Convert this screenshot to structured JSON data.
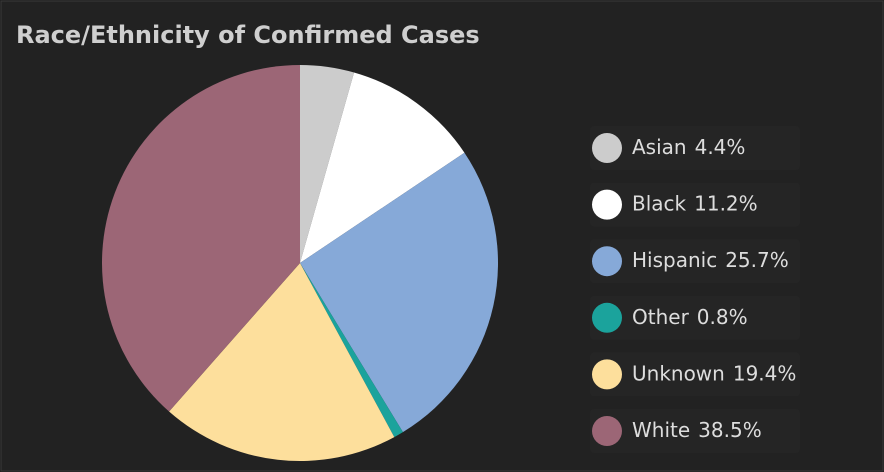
{
  "chart_data": {
    "type": "pie",
    "title": "Race/Ethnicity of Confirmed Cases",
    "categories": [
      "Asian",
      "Black",
      "Hispanic",
      "Other",
      "Unknown",
      "White"
    ],
    "values": [
      4.4,
      11.2,
      25.7,
      0.8,
      19.4,
      38.5
    ],
    "value_labels": [
      "4.4%",
      "11.2%",
      "25.7%",
      "0.8%",
      "19.4%",
      "38.5%"
    ],
    "colors": [
      "#cccccc",
      "#ffffff",
      "#86a9d8",
      "#1ba39c",
      "#fddf9c",
      "#9c6676"
    ],
    "legend": "right"
  }
}
